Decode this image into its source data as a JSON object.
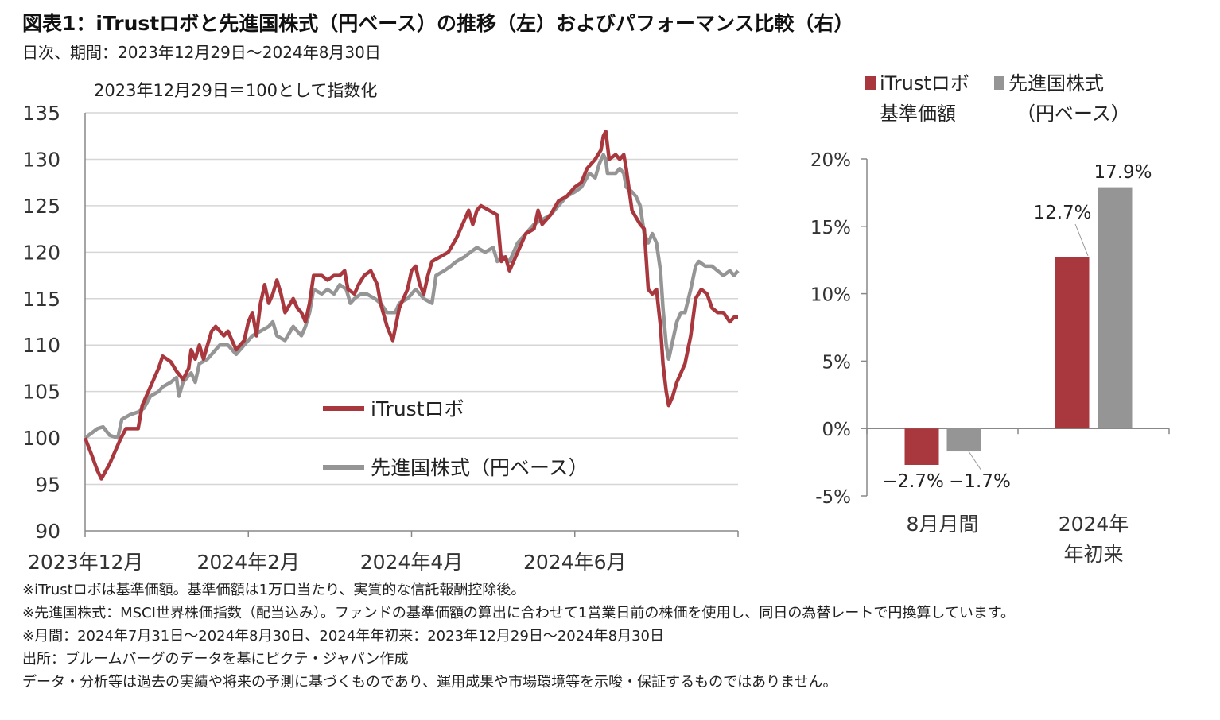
{
  "title": "図表1：iTrustロボと先進国株式（円ベース）の推移（左）およびパフォーマンス比較（右）",
  "subtitle": "日次、期間：2023年12月29日～2024年8月30日",
  "colors": {
    "robo": "#A8383E",
    "world": "#959595",
    "grid": "#d6d6d6",
    "axis": "#888888"
  },
  "chart_data": [
    {
      "type": "line",
      "annotation": "2023年12月29日＝100として指数化",
      "ylim": [
        90,
        135
      ],
      "yticks": [
        "90",
        "95",
        "100",
        "105",
        "110",
        "115",
        "120",
        "125",
        "130",
        "135"
      ],
      "xlim": [
        0,
        8
      ],
      "x_tick_labels": [
        {
          "x": 0,
          "label": "2023年12月"
        },
        {
          "x": 2,
          "label": "2024年2月"
        },
        {
          "x": 4,
          "label": "2024年4月"
        },
        {
          "x": 6,
          "label": "2024年6月"
        }
      ],
      "x_minor_ticks": [
        0,
        2,
        4,
        6,
        8
      ],
      "series": [
        {
          "name": "iTrustロボ",
          "color_key": "robo",
          "points": [
            [
              0,
              100
            ],
            [
              0.08,
              98.2
            ],
            [
              0.15,
              96.5
            ],
            [
              0.2,
              95.6
            ],
            [
              0.3,
              97.2
            ],
            [
              0.43,
              99.8
            ],
            [
              0.5,
              101.0
            ],
            [
              0.65,
              101.0
            ],
            [
              0.7,
              103.5
            ],
            [
              0.8,
              105.5
            ],
            [
              0.9,
              107.5
            ],
            [
              0.95,
              108.8
            ],
            [
              1.05,
              108.2
            ],
            [
              1.12,
              107.2
            ],
            [
              1.2,
              106.3
            ],
            [
              1.27,
              107.5
            ],
            [
              1.3,
              109.5
            ],
            [
              1.35,
              108.5
            ],
            [
              1.4,
              110.0
            ],
            [
              1.45,
              108.5
            ],
            [
              1.5,
              110.0
            ],
            [
              1.55,
              111.5
            ],
            [
              1.6,
              112.0
            ],
            [
              1.7,
              111.0
            ],
            [
              1.75,
              111.5
            ],
            [
              1.85,
              109.5
            ],
            [
              1.95,
              110.5
            ],
            [
              2.0,
              112.5
            ],
            [
              2.05,
              113.5
            ],
            [
              2.1,
              111.0
            ],
            [
              2.15,
              114.5
            ],
            [
              2.2,
              116.5
            ],
            [
              2.25,
              114.5
            ],
            [
              2.3,
              115.5
            ],
            [
              2.35,
              117.0
            ],
            [
              2.4,
              115.5
            ],
            [
              2.45,
              113.5
            ],
            [
              2.55,
              115.0
            ],
            [
              2.6,
              114.0
            ],
            [
              2.65,
              113.5
            ],
            [
              2.7,
              112.5
            ],
            [
              2.75,
              114.5
            ],
            [
              2.8,
              117.5
            ],
            [
              2.9,
              117.5
            ],
            [
              2.97,
              117.0
            ],
            [
              3.05,
              117.5
            ],
            [
              3.12,
              117.5
            ],
            [
              3.18,
              118.0
            ],
            [
              3.22,
              116.0
            ],
            [
              3.3,
              115.5
            ],
            [
              3.35,
              116.5
            ],
            [
              3.42,
              117.5
            ],
            [
              3.5,
              118.0
            ],
            [
              3.58,
              116.5
            ],
            [
              3.62,
              114.5
            ],
            [
              3.7,
              112.0
            ],
            [
              3.77,
              110.5
            ],
            [
              3.85,
              114.0
            ],
            [
              3.95,
              116.0
            ],
            [
              4.0,
              118.0
            ],
            [
              4.05,
              118.5
            ],
            [
              4.1,
              116.5
            ],
            [
              4.15,
              115.5
            ],
            [
              4.2,
              117.5
            ],
            [
              4.25,
              119.0
            ],
            [
              4.35,
              119.5
            ],
            [
              4.45,
              120.0
            ],
            [
              4.55,
              121.5
            ],
            [
              4.65,
              123.5
            ],
            [
              4.7,
              124.5
            ],
            [
              4.75,
              123.0
            ],
            [
              4.8,
              124.5
            ],
            [
              4.85,
              125.0
            ],
            [
              4.95,
              124.5
            ],
            [
              5.05,
              124.0
            ],
            [
              5.1,
              119.0
            ],
            [
              5.15,
              119.5
            ],
            [
              5.2,
              118.0
            ],
            [
              5.3,
              120.0
            ],
            [
              5.4,
              122.0
            ],
            [
              5.5,
              122.5
            ],
            [
              5.55,
              124.5
            ],
            [
              5.6,
              123.0
            ],
            [
              5.7,
              124.0
            ],
            [
              5.8,
              125.5
            ],
            [
              5.9,
              126.0
            ],
            [
              6.0,
              127.0
            ],
            [
              6.08,
              127.5
            ],
            [
              6.15,
              129.0
            ],
            [
              6.25,
              130.0
            ],
            [
              6.32,
              131.0
            ],
            [
              6.35,
              132.5
            ],
            [
              6.38,
              133.0
            ],
            [
              6.42,
              130.0
            ],
            [
              6.5,
              130.5
            ],
            [
              6.55,
              130.0
            ],
            [
              6.6,
              130.5
            ],
            [
              6.63,
              129.0
            ],
            [
              6.7,
              124.5
            ],
            [
              6.8,
              123.0
            ],
            [
              6.85,
              122.5
            ],
            [
              6.9,
              116.0
            ],
            [
              6.95,
              115.5
            ],
            [
              7.0,
              116.0
            ],
            [
              7.05,
              112.0
            ],
            [
              7.08,
              108.0
            ],
            [
              7.12,
              105.0
            ],
            [
              7.15,
              103.5
            ],
            [
              7.2,
              104.5
            ],
            [
              7.25,
              106.0
            ],
            [
              7.3,
              107.0
            ],
            [
              7.35,
              108.0
            ],
            [
              7.42,
              111.0
            ],
            [
              7.48,
              115.0
            ],
            [
              7.55,
              116.0
            ],
            [
              7.62,
              115.5
            ],
            [
              7.68,
              114.0
            ],
            [
              7.75,
              113.5
            ],
            [
              7.82,
              113.5
            ],
            [
              7.9,
              112.5
            ],
            [
              7.95,
              113.0
            ],
            [
              8.0,
              113.0
            ]
          ]
        },
        {
          "name": "先進国株式（円ベース）",
          "color_key": "world",
          "points": [
            [
              0,
              100
            ],
            [
              0.15,
              101.0
            ],
            [
              0.22,
              101.2
            ],
            [
              0.3,
              100.3
            ],
            [
              0.4,
              100.0
            ],
            [
              0.45,
              102.0
            ],
            [
              0.55,
              102.5
            ],
            [
              0.65,
              102.8
            ],
            [
              0.72,
              103.2
            ],
            [
              0.8,
              104.5
            ],
            [
              0.9,
              105.0
            ],
            [
              0.95,
              105.5
            ],
            [
              1.05,
              106.0
            ],
            [
              1.12,
              106.5
            ],
            [
              1.15,
              104.5
            ],
            [
              1.2,
              106.0
            ],
            [
              1.3,
              107.0
            ],
            [
              1.35,
              106.0
            ],
            [
              1.4,
              108.0
            ],
            [
              1.5,
              108.5
            ],
            [
              1.55,
              109.0
            ],
            [
              1.6,
              109.5
            ],
            [
              1.65,
              110.0
            ],
            [
              1.75,
              110.0
            ],
            [
              1.85,
              109.0
            ],
            [
              1.95,
              110.0
            ],
            [
              2.05,
              111.0
            ],
            [
              2.15,
              111.5
            ],
            [
              2.25,
              112.0
            ],
            [
              2.3,
              112.5
            ],
            [
              2.35,
              111.0
            ],
            [
              2.45,
              110.5
            ],
            [
              2.55,
              112.0
            ],
            [
              2.6,
              111.5
            ],
            [
              2.65,
              111.0
            ],
            [
              2.7,
              112.0
            ],
            [
              2.75,
              113.5
            ],
            [
              2.8,
              116.0
            ],
            [
              2.9,
              115.5
            ],
            [
              2.97,
              116.0
            ],
            [
              3.05,
              115.5
            ],
            [
              3.12,
              116.5
            ],
            [
              3.2,
              116.0
            ],
            [
              3.25,
              114.5
            ],
            [
              3.3,
              115.0
            ],
            [
              3.38,
              115.5
            ],
            [
              3.45,
              115.5
            ],
            [
              3.55,
              115.0
            ],
            [
              3.62,
              114.5
            ],
            [
              3.7,
              113.5
            ],
            [
              3.8,
              113.5
            ],
            [
              3.85,
              114.5
            ],
            [
              3.95,
              115.0
            ],
            [
              4.05,
              116.0
            ],
            [
              4.1,
              115.5
            ],
            [
              4.15,
              115.0
            ],
            [
              4.25,
              114.5
            ],
            [
              4.3,
              117.5
            ],
            [
              4.4,
              118.0
            ],
            [
              4.48,
              118.5
            ],
            [
              4.55,
              119.0
            ],
            [
              4.65,
              119.5
            ],
            [
              4.72,
              120.0
            ],
            [
              4.8,
              120.5
            ],
            [
              4.9,
              120.0
            ],
            [
              5.0,
              120.5
            ],
            [
              5.05,
              119.0
            ],
            [
              5.12,
              119.5
            ],
            [
              5.2,
              119.0
            ],
            [
              5.3,
              121.0
            ],
            [
              5.4,
              122.0
            ],
            [
              5.5,
              123.0
            ],
            [
              5.6,
              123.5
            ],
            [
              5.7,
              124.0
            ],
            [
              5.8,
              125.0
            ],
            [
              5.9,
              126.0
            ],
            [
              6.0,
              126.5
            ],
            [
              6.08,
              127.0
            ],
            [
              6.18,
              128.5
            ],
            [
              6.25,
              128.0
            ],
            [
              6.3,
              129.5
            ],
            [
              6.35,
              130.5
            ],
            [
              6.38,
              130.0
            ],
            [
              6.4,
              128.5
            ],
            [
              6.5,
              128.5
            ],
            [
              6.55,
              129.0
            ],
            [
              6.6,
              128.5
            ],
            [
              6.63,
              127.0
            ],
            [
              6.7,
              126.5
            ],
            [
              6.75,
              126.0
            ],
            [
              6.8,
              125.0
            ],
            [
              6.85,
              122.0
            ],
            [
              6.9,
              121.0
            ],
            [
              6.95,
              122.0
            ],
            [
              7.0,
              121.0
            ],
            [
              7.05,
              118.0
            ],
            [
              7.08,
              114.0
            ],
            [
              7.12,
              110.0
            ],
            [
              7.15,
              108.5
            ],
            [
              7.2,
              110.5
            ],
            [
              7.25,
              112.5
            ],
            [
              7.3,
              113.5
            ],
            [
              7.35,
              113.5
            ],
            [
              7.42,
              116.0
            ],
            [
              7.48,
              118.5
            ],
            [
              7.52,
              119.0
            ],
            [
              7.6,
              118.5
            ],
            [
              7.68,
              118.5
            ],
            [
              7.75,
              118.0
            ],
            [
              7.82,
              117.5
            ],
            [
              7.9,
              118.0
            ],
            [
              7.95,
              117.5
            ],
            [
              8.0,
              118.0
            ]
          ]
        }
      ]
    },
    {
      "type": "bar",
      "ylim": [
        -5,
        20
      ],
      "yticks": [
        "-5%",
        "0%",
        "5%",
        "10%",
        "15%",
        "20%"
      ],
      "ytick_values": [
        -5,
        0,
        5,
        10,
        15,
        20
      ],
      "categories": [
        "8月月間",
        "2024年\n年初来"
      ],
      "category_lines": [
        [
          "8月月間"
        ],
        [
          "2024年",
          "年初来"
        ]
      ],
      "legend": [
        {
          "lines": [
            "iTrustロボ",
            "基準価額"
          ],
          "color_key": "robo"
        },
        {
          "lines": [
            "先進国株式",
            "（円ベース）"
          ],
          "color_key": "world"
        }
      ],
      "series": [
        {
          "name": "iTrustロボ基準価額",
          "color_key": "robo",
          "values": [
            -2.7,
            12.7
          ],
          "labels": [
            "−2.7%",
            "12.7%"
          ]
        },
        {
          "name": "先進国株式（円ベース）",
          "color_key": "world",
          "values": [
            -1.7,
            17.9
          ],
          "labels": [
            "−1.7%",
            "17.9%"
          ]
        }
      ]
    }
  ],
  "notes": [
    "※iTrustロボは基準価額。基準価額は1万口当たり、実質的な信託報酬控除後。",
    "※先進国株式：MSCI世界株価指数（配当込み）。ファンドの基準価額の算出に合わせて1営業日前の株価を使用し、同日の為替レートで円換算しています。",
    "※月間：2024年7月31日～2024年8月30日、2024年年初来：2023年12月29日～2024年8月30日",
    "出所：ブルームバーグのデータを基にピクテ・ジャパン作成",
    "データ・分析等は過去の実績や将来の予測に基づくものであり、運用成果や市場環境等を示唆・保証するものではありません。"
  ]
}
